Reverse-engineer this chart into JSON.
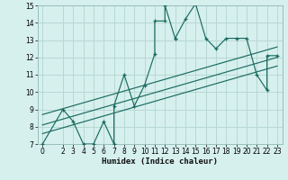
{
  "title": "",
  "xlabel": "Humidex (Indice chaleur)",
  "bg_color": "#d6f0ee",
  "grid_color": "#b8d8d4",
  "line_color": "#1a6b60",
  "scatter_data": [
    [
      0,
      7
    ],
    [
      2,
      9
    ],
    [
      3,
      8.3
    ],
    [
      4,
      7
    ],
    [
      5,
      7
    ],
    [
      6,
      8.3
    ],
    [
      7,
      7
    ],
    [
      7,
      9.2
    ],
    [
      8,
      11
    ],
    [
      9,
      9.2
    ],
    [
      10,
      10.4
    ],
    [
      11,
      12.2
    ],
    [
      11,
      14.1
    ],
    [
      12,
      14.1
    ],
    [
      12,
      15
    ],
    [
      13,
      13.1
    ],
    [
      13,
      13.1
    ],
    [
      14,
      14.2
    ],
    [
      15,
      15.1
    ],
    [
      16,
      13.1
    ],
    [
      17,
      12.5
    ],
    [
      18,
      13.1
    ],
    [
      19,
      13.1
    ],
    [
      20,
      13.1
    ],
    [
      21,
      11
    ],
    [
      22,
      10.1
    ],
    [
      22,
      12.1
    ],
    [
      23,
      12.1
    ]
  ],
  "regression_lines": [
    {
      "x0": 0,
      "y0": 7.6,
      "x1": 23,
      "y1": 11.5
    },
    {
      "x0": 0,
      "y0": 8.1,
      "x1": 23,
      "y1": 12.0
    },
    {
      "x0": 0,
      "y0": 8.7,
      "x1": 23,
      "y1": 12.6
    }
  ],
  "xlim": [
    -0.5,
    23.5
  ],
  "ylim": [
    7,
    15
  ],
  "xticks": [
    0,
    2,
    3,
    4,
    5,
    6,
    7,
    8,
    9,
    10,
    11,
    12,
    13,
    14,
    15,
    16,
    17,
    18,
    19,
    20,
    21,
    22,
    23
  ],
  "yticks": [
    7,
    8,
    9,
    10,
    11,
    12,
    13,
    14,
    15
  ],
  "tick_fontsize": 5.5,
  "xlabel_fontsize": 6.5
}
